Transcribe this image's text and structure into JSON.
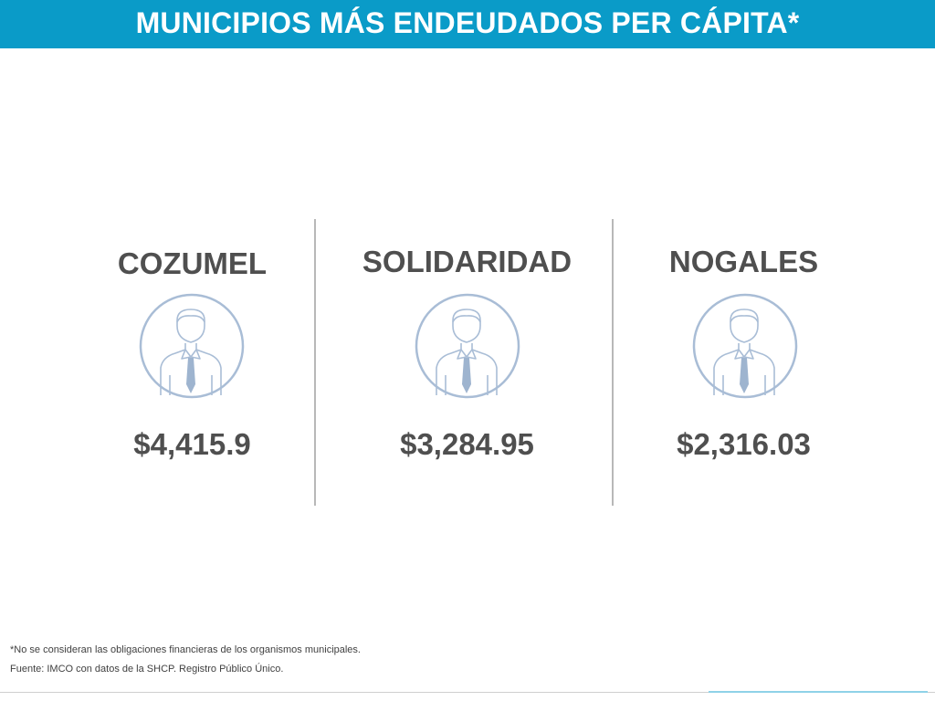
{
  "header": {
    "title": "MUNICIPIOS MÁS ENDEUDADOS PER CÁPITA*",
    "background_color": "#0a9bc8"
  },
  "municipalities": [
    {
      "name": "COZUMEL",
      "amount": "$4,415.9",
      "icon": "person-avatar-icon"
    },
    {
      "name": "SOLIDARIDAD",
      "amount": "$3,284.95",
      "icon": "person-avatar-icon"
    },
    {
      "name": "NOGALES",
      "amount": "$2,316.03",
      "icon": "person-avatar-icon"
    }
  ],
  "footnotes": {
    "note": "*No se consideran las obligaciones financieras de los organismos municipales.",
    "source": "Fuente: IMCO con datos de la SHCP. Registro Público Único."
  },
  "colors": {
    "text": "#4f4f4f",
    "avatar_stroke": "#a9bdd6",
    "tie": "#9eb4cf"
  }
}
